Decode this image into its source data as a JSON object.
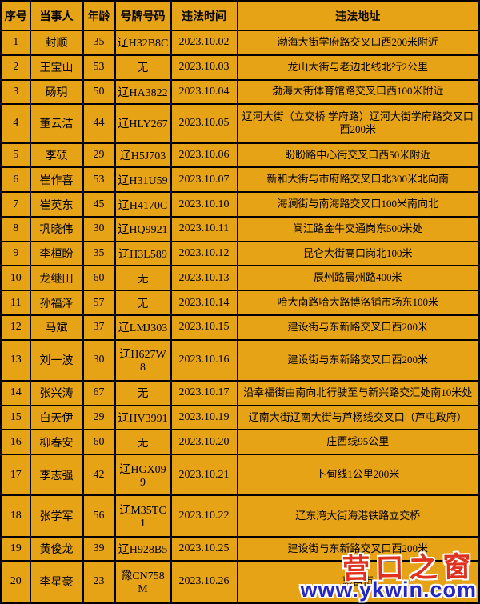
{
  "colors": {
    "background": "#e6a315",
    "border": "#000000",
    "text": "#000000",
    "watermark_name": "#e0311f",
    "watermark_url": "#2427c6"
  },
  "table": {
    "columns": [
      "序号",
      "当事人",
      "年龄",
      "号牌号码",
      "违法时间",
      "违法地址"
    ],
    "rows": [
      {
        "seq": "1",
        "name": "封顺",
        "age": "35",
        "plate": "辽H32B8C",
        "time": "2023.10.02",
        "address": "渤海大街学府路交叉口西200米附近"
      },
      {
        "seq": "2",
        "name": "王宝山",
        "age": "53",
        "plate": "无",
        "time": "2023.10.03",
        "address": "龙山大街与老边北线北行2公里"
      },
      {
        "seq": "3",
        "name": "砀玥",
        "age": "50",
        "plate": "辽HA3822",
        "time": "2023.10.04",
        "address": "渤海大街体育馆路交叉口西100米附近"
      },
      {
        "seq": "4",
        "name": "董云洁",
        "age": "44",
        "plate": "辽HLY267",
        "time": "2023.10.05",
        "address": "辽河大街（立交桥 学府路）辽河大街学府路交叉口西200米"
      },
      {
        "seq": "5",
        "name": "李硕",
        "age": "29",
        "plate": "辽H5J703",
        "time": "2023.10.06",
        "address": "盼盼路中心街交叉口西50米附近"
      },
      {
        "seq": "6",
        "name": "崔作喜",
        "age": "53",
        "plate": "辽H31U59",
        "time": "2023.10.07",
        "address": "新和大街与市府路交叉口北300米北向南"
      },
      {
        "seq": "7",
        "name": "崔英东",
        "age": "45",
        "plate": "辽H4170C",
        "time": "2023.10.10",
        "address": "海澜街与南海路交叉口100米南向北"
      },
      {
        "seq": "8",
        "name": "巩晓伟",
        "age": "30",
        "plate": "辽HQ9921",
        "time": "2023.10.11",
        "address": "闽江路金牛交通岗东500米处"
      },
      {
        "seq": "9",
        "name": "李桓盼",
        "age": "35",
        "plate": "辽H3L589",
        "time": "2023.10.12",
        "address": "昆仑大街高口岗北100米"
      },
      {
        "seq": "10",
        "name": "龙继田",
        "age": "60",
        "plate": "无",
        "time": "2023.10.13",
        "address": "辰州路晨州路400米"
      },
      {
        "seq": "11",
        "name": "孙福泽",
        "age": "57",
        "plate": "无",
        "time": "2023.10.14",
        "address": "哈大南路哈大路博洛铺市场东100米"
      },
      {
        "seq": "12",
        "name": "马斌",
        "age": "37",
        "plate": "辽LMJ303",
        "time": "2023.10.15",
        "address": "建设街与东新路交叉口西200米"
      },
      {
        "seq": "13",
        "name": "刘一波",
        "age": "30",
        "plate": "辽H627W8",
        "time": "2023.10.16",
        "address": "建设街与东新路交叉口西200米"
      },
      {
        "seq": "14",
        "name": "张兴涛",
        "age": "67",
        "plate": "无",
        "time": "2023.10.17",
        "address": "沿幸福街由南向北行驶至与新兴路交汇处南10米处"
      },
      {
        "seq": "15",
        "name": "白天伊",
        "age": "29",
        "plate": "辽HV3991",
        "time": "2023.10.19",
        "address": "辽南大街辽南大街与芦杨线交叉口（芦屯政府）"
      },
      {
        "seq": "16",
        "name": "柳春安",
        "age": "60",
        "plate": "无",
        "time": "2023.10.20",
        "address": "庄西线95公里"
      },
      {
        "seq": "17",
        "name": "李志强",
        "age": "42",
        "plate": "辽HGX099",
        "time": "2023.10.21",
        "address": "卜甸线1公里200米"
      },
      {
        "seq": "18",
        "name": "张学军",
        "age": "56",
        "plate": "辽M35TC1",
        "time": "2023.10.22",
        "address": "辽东湾大街海港铁路立交桥"
      },
      {
        "seq": "19",
        "name": "黄俊龙",
        "age": "39",
        "plate": "辽H928B5",
        "time": "2023.10.25",
        "address": "建设街与东新路交叉口西200米"
      },
      {
        "seq": "20",
        "name": "李星豪",
        "age": "23",
        "plate": "豫CN758M",
        "time": "2023.10.26",
        "address": "惠笛街"
      }
    ]
  },
  "watermark": {
    "site_name": "营口之窗",
    "site_url": "www.ykwin.com"
  }
}
